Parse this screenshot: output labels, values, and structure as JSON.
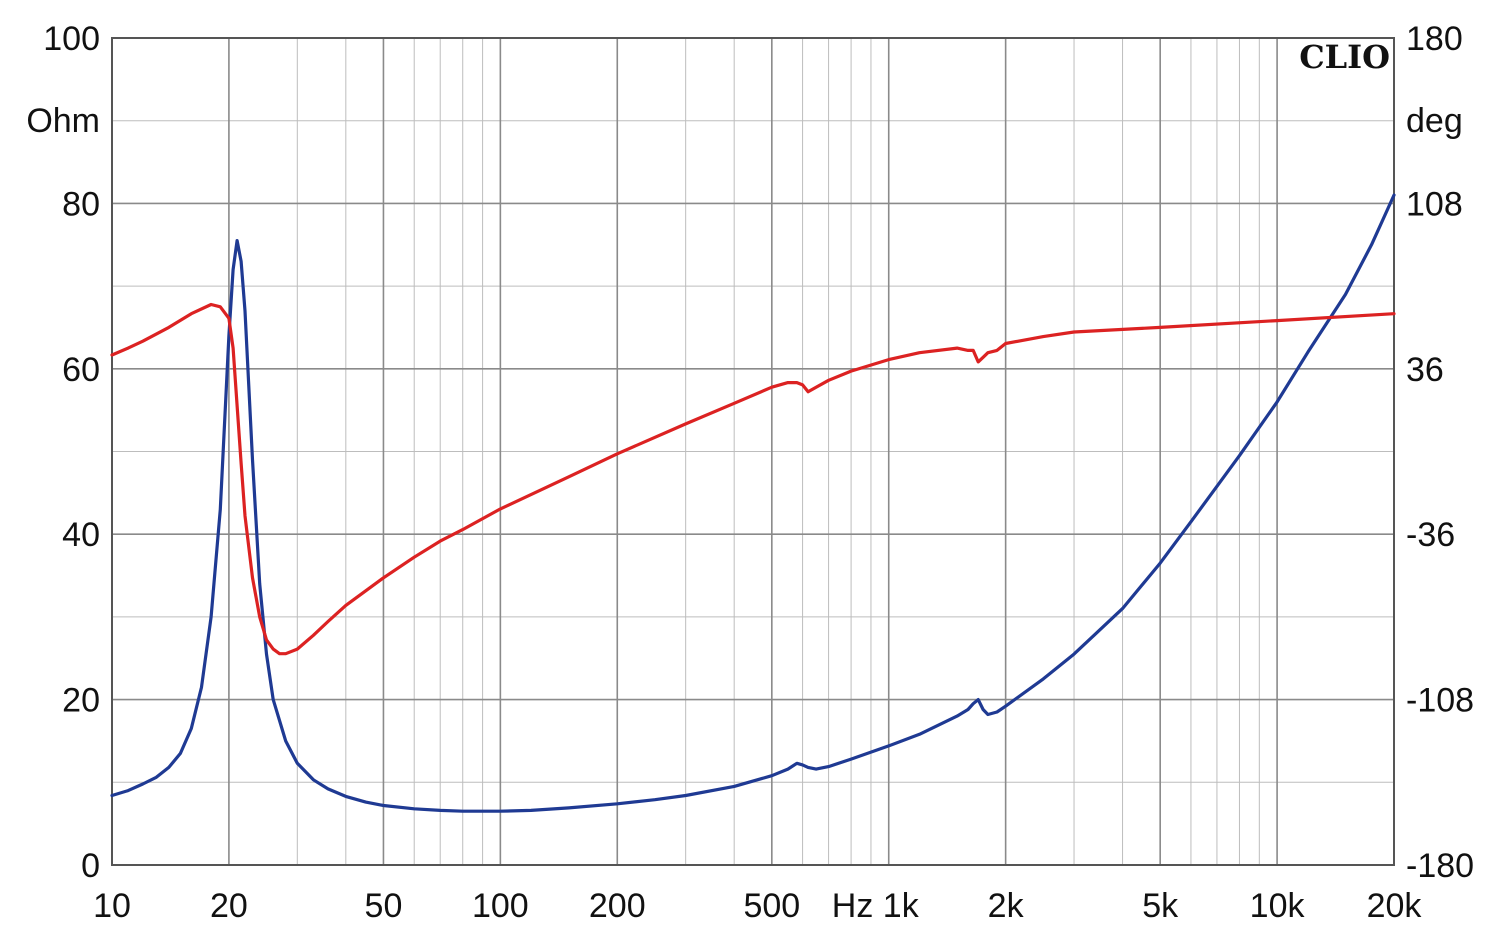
{
  "chart_data": {
    "type": "line",
    "x_scale": "log",
    "xlim": [
      10,
      20000
    ],
    "x_ticks": [
      10,
      20,
      50,
      100,
      200,
      500,
      1000,
      2000,
      5000,
      10000,
      20000
    ],
    "x_tick_labels": [
      "10",
      "20",
      "50",
      "100",
      "200",
      "500",
      "Hz 1k",
      "2k",
      "5k",
      "10k",
      "20k"
    ],
    "y_left": {
      "label": "Ohm",
      "lim": [
        0,
        100
      ],
      "tick_labels": [
        "0",
        "20",
        "40",
        "60",
        "80",
        "100"
      ]
    },
    "y_right": {
      "label": "deg",
      "lim": [
        -180,
        180
      ],
      "tick_labels": [
        "-180",
        "-108",
        "-36",
        "36",
        "108",
        "180"
      ]
    },
    "grid": true,
    "brand": "CLIO",
    "series": [
      {
        "key": "impedance",
        "color": "#1f3a93",
        "axis": "left",
        "x": [
          10,
          11,
          12,
          13,
          14,
          15,
          16,
          17,
          18,
          19,
          20,
          20.5,
          21,
          21.5,
          22,
          23,
          24,
          25,
          26,
          28,
          30,
          33,
          36,
          40,
          45,
          50,
          60,
          70,
          80,
          100,
          120,
          150,
          200,
          250,
          300,
          400,
          500,
          550,
          580,
          600,
          620,
          650,
          700,
          800,
          1000,
          1200,
          1500,
          1600,
          1650,
          1700,
          1750,
          1800,
          1900,
          2000,
          2500,
          3000,
          4000,
          5000,
          6000,
          8000,
          10000,
          12000,
          15000,
          17500,
          20000
        ],
        "values": [
          8.4,
          9.0,
          9.8,
          10.6,
          11.8,
          13.5,
          16.5,
          21.5,
          30,
          43,
          64,
          72,
          75.5,
          73,
          67,
          49,
          34,
          25.5,
          20,
          15,
          12.3,
          10.3,
          9.2,
          8.3,
          7.6,
          7.2,
          6.8,
          6.6,
          6.5,
          6.5,
          6.6,
          6.9,
          7.4,
          7.9,
          8.4,
          9.5,
          10.8,
          11.6,
          12.3,
          12.1,
          11.8,
          11.6,
          11.9,
          12.8,
          14.4,
          15.8,
          18.0,
          18.8,
          19.5,
          20.0,
          18.8,
          18.2,
          18.5,
          19.2,
          22.5,
          25.5,
          31,
          36.5,
          41.5,
          49.5,
          56,
          62,
          69,
          75,
          81
        ]
      },
      {
        "key": "phase",
        "color": "#dc2222",
        "axis": "right",
        "x": [
          10,
          11,
          12,
          14,
          16,
          18,
          19,
          20,
          20.5,
          21,
          21.5,
          22,
          23,
          24,
          25,
          26,
          27,
          28,
          30,
          33,
          36,
          40,
          50,
          60,
          70,
          80,
          100,
          150,
          200,
          300,
          400,
          500,
          550,
          580,
          600,
          620,
          650,
          700,
          800,
          1000,
          1200,
          1500,
          1600,
          1650,
          1700,
          1750,
          1800,
          1900,
          2000,
          2500,
          3000,
          5000,
          10000,
          20000
        ],
        "values": [
          42,
          45,
          48,
          54,
          60,
          64,
          63,
          58,
          45,
          20,
          -5,
          -28,
          -55,
          -72,
          -82,
          -86,
          -88,
          -88,
          -86,
          -80,
          -74,
          -67,
          -55,
          -46,
          -39,
          -34,
          -25,
          -11,
          -1,
          12,
          21,
          28,
          30,
          30,
          29,
          26,
          28,
          31,
          35,
          40,
          43,
          45,
          44,
          44,
          39,
          41,
          43,
          44,
          47,
          50,
          52,
          54,
          57,
          60
        ]
      }
    ]
  }
}
